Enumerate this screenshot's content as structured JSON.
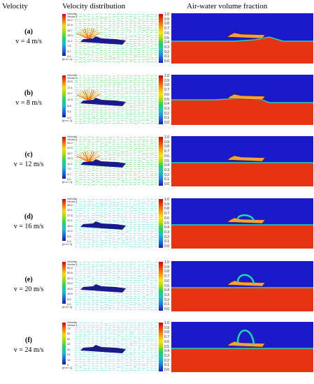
{
  "headers": {
    "velocity": "Velocity",
    "distribution": "Velocity distribution",
    "fraction": "Air-water volume fraction"
  },
  "legend": {
    "title_line1": "Velocity",
    "title_line2": "Vector 1",
    "unit": "[m s^-1]",
    "fraction_ticks": [
      "1.0",
      "0.9",
      "0.8",
      "0.7",
      "0.6",
      "0.5",
      "0.4",
      "0.3",
      "0.2",
      "0.1",
      "0.0"
    ]
  },
  "colors": {
    "water": "#e63312",
    "air": "#1a1ac8",
    "interface": "#1fd6b0",
    "hull": "#1a1a8a",
    "vector_green": "#21d64a",
    "vector_cyan": "#2bd3c8"
  },
  "rows": [
    {
      "letter": "(a)",
      "velocity": "v = 4 m/s",
      "ticks": [
        "26.2",
        "22.5",
        "18.7",
        "15.0",
        "11.2",
        "7.5",
        "3.7",
        "0.0"
      ]
    },
    {
      "letter": "(b)",
      "velocity": "v = 8 m/s",
      "ticks": [
        "20.5",
        "17.1",
        "13.7",
        "10.3",
        "6.8",
        "3.4",
        "0.0"
      ]
    },
    {
      "letter": "(c)",
      "velocity": "v = 12 m/s",
      "ticks": [
        "26.2",
        "22.5",
        "18.7",
        "15.0",
        "11.2",
        "7.5",
        "3.7",
        "0.0"
      ]
    },
    {
      "letter": "(d)",
      "velocity": "v = 16 m/s",
      "ticks": [
        "38.6",
        "33.1",
        "27.6",
        "22.1",
        "16.6",
        "11.0",
        "5.5",
        "0.0"
      ]
    },
    {
      "letter": "(e)",
      "velocity": "v = 20 m/s",
      "ticks": [
        "59.3",
        "50.8",
        "42.3",
        "33.9",
        "25.4",
        "16.9",
        "8.5",
        "0.0"
      ]
    },
    {
      "letter": "(f)",
      "velocity": "v = 24 m/s",
      "ticks": [
        "73",
        "62",
        "52",
        "42",
        "31",
        "21",
        "10",
        "0"
      ]
    }
  ]
}
